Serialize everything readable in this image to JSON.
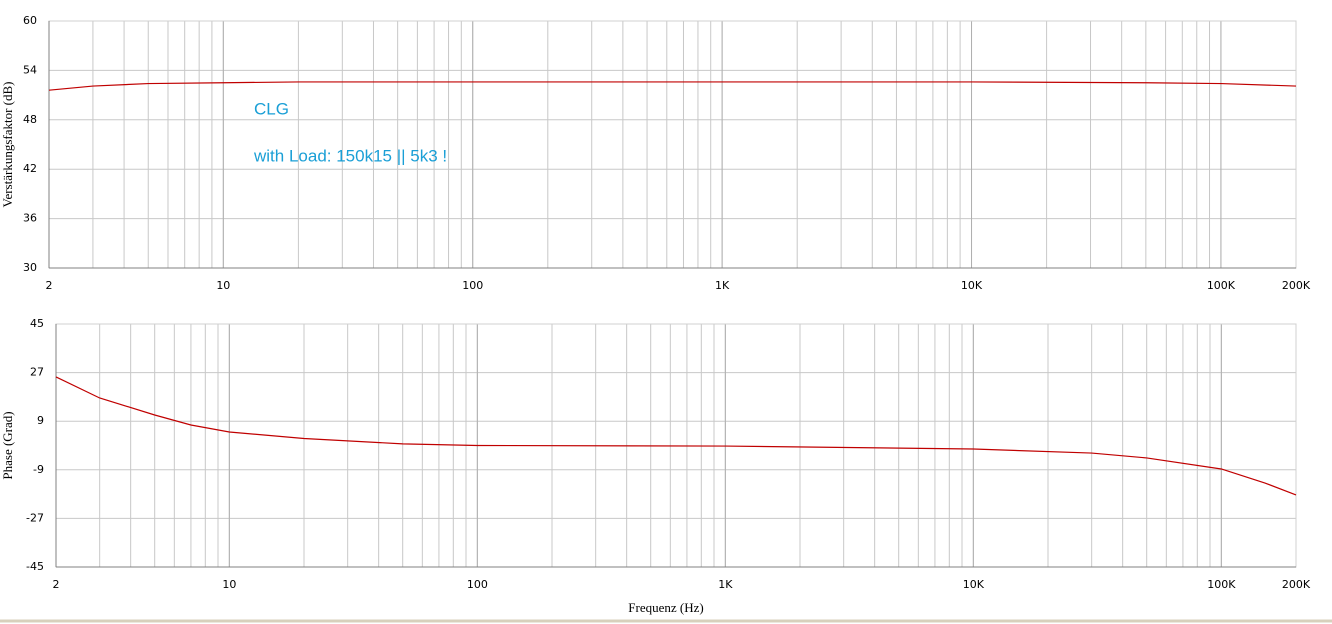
{
  "chart_data": [
    {
      "type": "line",
      "y_label": "Verstärkungsfaktor (dB)",
      "annotations": [
        "CLG",
        "with Load: 150k15 || 5k3 !"
      ],
      "log_x": true,
      "grid": true,
      "xlim": [
        2,
        200000
      ],
      "xticks": [
        2,
        10,
        100,
        {
          "value": 1000,
          "label": "1K"
        },
        {
          "value": 10000,
          "label": "10K"
        },
        {
          "value": 100000,
          "label": "100K"
        },
        {
          "value": 200000,
          "label": "200K"
        }
      ],
      "ylim": [
        30,
        60
      ],
      "yticks": [
        30,
        36,
        42,
        48,
        54,
        60
      ],
      "x": [
        2,
        3,
        5,
        10,
        20,
        100,
        1000,
        10000,
        50000,
        100000,
        200000
      ],
      "series": [
        {
          "color": "#c00000",
          "values": [
            51.6,
            52.1,
            52.4,
            52.5,
            52.6,
            52.6,
            52.6,
            52.6,
            52.5,
            52.4,
            52.1
          ]
        }
      ]
    },
    {
      "type": "line",
      "y_label": "Phase (Grad)",
      "x_label": "Frequenz (Hz)",
      "log_x": true,
      "grid": true,
      "xlim": [
        2,
        200000
      ],
      "xticks": [
        2,
        10,
        100,
        {
          "value": 1000,
          "label": "1K"
        },
        {
          "value": 10000,
          "label": "10K"
        },
        {
          "value": 100000,
          "label": "100K"
        },
        {
          "value": 200000,
          "label": "200K"
        }
      ],
      "ylim": [
        -45,
        45
      ],
      "yticks": [
        -45,
        -27,
        -9,
        9,
        27,
        45
      ],
      "x": [
        2,
        3,
        5,
        7,
        10,
        20,
        50,
        100,
        1000,
        10000,
        30000,
        50000,
        100000,
        150000,
        200000
      ],
      "series": [
        {
          "color": "#c00000",
          "values": [
            25.4,
            17.6,
            11.3,
            7.6,
            5,
            2.6,
            0.6,
            0,
            -0.2,
            -1.3,
            -2.8,
            -4.6,
            -8.7,
            -13.9,
            -18.3
          ]
        }
      ]
    }
  ]
}
